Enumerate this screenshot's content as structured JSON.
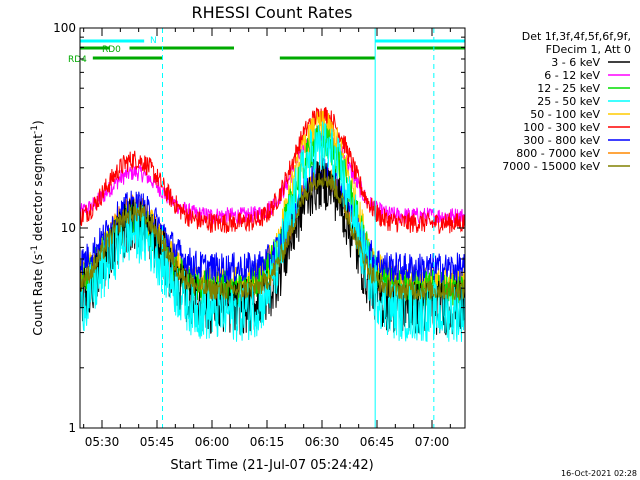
{
  "chart_data": {
    "type": "line",
    "title": "RHESSI Count Rates",
    "xlabel": "Start Time (21-Jul-07 05:24:42)",
    "ylabel_main": "Count Rate (s",
    "ylabel_sup1": "-1",
    "ylabel_mid": " detector segment",
    "ylabel_sup2": "-1",
    "ylabel_end": ")",
    "y_scale": "log",
    "ylim": [
      1,
      100
    ],
    "y_ticks": [
      {
        "value": 1,
        "label": "1"
      },
      {
        "value": 10,
        "label": "10"
      },
      {
        "value": 100,
        "label": "100"
      }
    ],
    "x_range_min": [
      -6,
      99
    ],
    "x_ticks": [
      {
        "t": 0,
        "label": "05:30"
      },
      {
        "t": 15,
        "label": "05:45"
      },
      {
        "t": 30,
        "label": "06:00"
      },
      {
        "t": 45,
        "label": "06:15"
      },
      {
        "t": 60,
        "label": "06:30"
      },
      {
        "t": 75,
        "label": "06:45"
      },
      {
        "t": 90,
        "label": "07:00"
      }
    ],
    "legend_header": [
      "Det 1f,3f,4f,5f,6f,9f,",
      "FDecim 1, Att 0"
    ],
    "series": [
      {
        "name": "3 - 6 keV",
        "color": "#000000",
        "base": 4.0,
        "p1": 10.5,
        "p2": 17.0,
        "jitter": 0.32
      },
      {
        "name": "6 - 12 keV",
        "color": "#ff00ff",
        "base": 11.5,
        "p1": 19.0,
        "p2": 30.0,
        "jitter": 0.1
      },
      {
        "name": "12 - 25 keV",
        "color": "#00dd00",
        "base": 5.0,
        "p1": 11.0,
        "p2": 27.0,
        "jitter": 0.22
      },
      {
        "name": "25 - 50 keV",
        "color": "#00ffff",
        "base": 3.8,
        "p1": 9.5,
        "p2": 25.0,
        "jitter": 0.35
      },
      {
        "name": "50 - 100 keV",
        "color": "#ffcc00",
        "base": 5.3,
        "p1": 11.5,
        "p2": 32.0,
        "jitter": 0.2
      },
      {
        "name": "100 - 300 keV",
        "color": "#ff0000",
        "base": 10.6,
        "p1": 22.0,
        "p2": 37.0,
        "jitter": 0.12
      },
      {
        "name": "300 - 800 keV",
        "color": "#0000ff",
        "base": 6.3,
        "p1": 13.0,
        "p2": 19.0,
        "jitter": 0.18
      },
      {
        "name": "800 - 7000 keV",
        "color": "#ff8800",
        "base": 5.1,
        "p1": 12.5,
        "p2": 18.5,
        "jitter": 0.16
      },
      {
        "name": "7000 - 15000 keV",
        "color": "#808000",
        "base": 4.9,
        "p1": 12.0,
        "p2": 18.0,
        "jitter": 0.12
      }
    ],
    "flags": [
      {
        "label": "RD0",
        "color": "#00aa00",
        "y_level": 0,
        "segments": [
          [
            -6,
            2
          ],
          [
            7.5,
            36
          ],
          [
            75,
            99
          ]
        ]
      },
      {
        "label": "RD4",
        "color": "#00aa00",
        "y_level": 1,
        "segments": [
          [
            -2.5,
            16.5
          ],
          [
            48.5,
            74.5
          ]
        ]
      },
      {
        "label": "N",
        "color": "#00ffff",
        "y_level": -1,
        "segments": [
          [
            -6,
            11.5
          ],
          [
            74.5,
            99
          ]
        ]
      }
    ],
    "vlines": [
      {
        "t": -6,
        "style": "solid",
        "color": "#00ffff"
      },
      {
        "t": 16.5,
        "style": "dash",
        "color": "#00ffff"
      },
      {
        "t": 74.5,
        "style": "solid",
        "color": "#00ffff"
      },
      {
        "t": 90.5,
        "style": "dash",
        "color": "#00ffff"
      }
    ]
  },
  "footer_timestamp": "16-Oct-2021 02:28"
}
